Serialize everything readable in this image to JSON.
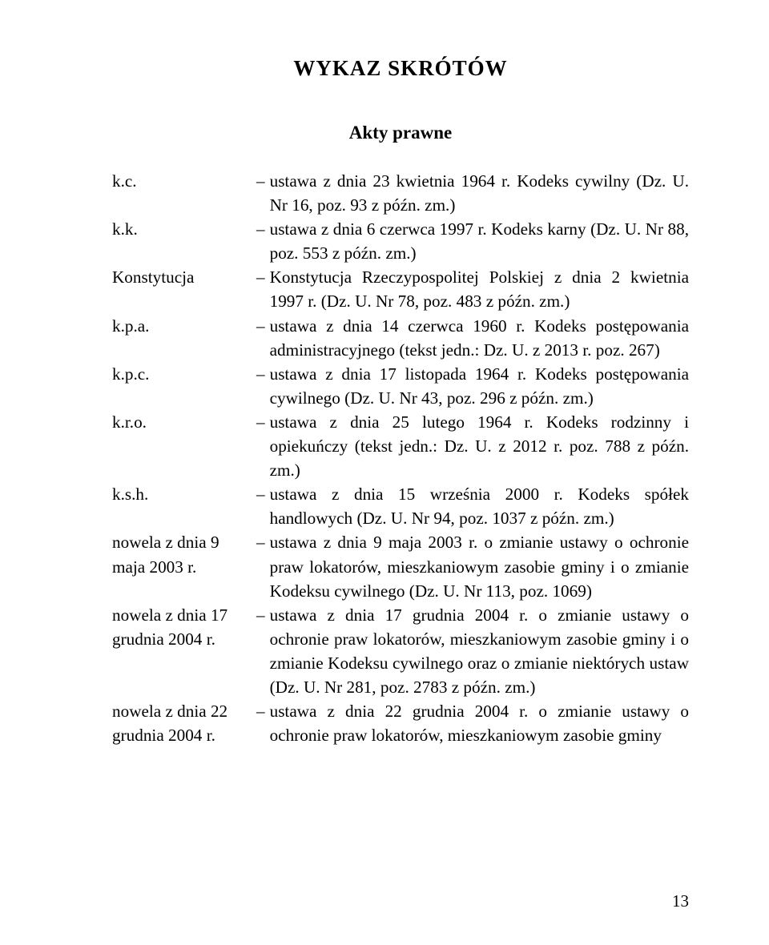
{
  "title": "WYKAZ SKRÓTÓW",
  "subtitle": "Akty prawne",
  "entries": [
    {
      "key": "k.c.",
      "desc": "ustawa z dnia 23 kwietnia 1964 r. Kodeks cywilny (Dz. U. Nr 16, poz. 93 z późn. zm.)"
    },
    {
      "key": "k.k.",
      "desc": "ustawa z dnia 6 czerwca 1997 r. Kodeks karny (Dz. U. Nr 88, poz. 553 z późn. zm.)"
    },
    {
      "key": "Konstytucja",
      "desc": "Konstytucja Rzeczypospolitej Polskiej z dnia 2 kwietnia 1997 r. (Dz. U. Nr 78, poz. 483 z późn. zm.)"
    },
    {
      "key": "k.p.a.",
      "desc": "ustawa z dnia 14 czerwca 1960 r. Kodeks postępowania administracyjnego (tekst jedn.: Dz. U. z 2013 r. poz. 267)"
    },
    {
      "key": "k.p.c.",
      "desc": "ustawa z dnia 17 listopada 1964 r. Kodeks postępowania cywilnego (Dz. U. Nr 43, poz. 296 z późn. zm.)"
    },
    {
      "key": "k.r.o.",
      "desc": "ustawa z dnia 25 lutego 1964 r. Kodeks rodzinny i opiekuńczy (tekst jedn.: Dz. U. z 2012 r. poz. 788 z późn. zm.)"
    },
    {
      "key": "k.s.h.",
      "desc": "ustawa z dnia 15 września 2000 r. Kodeks spółek handlowych (Dz. U. Nr 94, poz. 1037 z późn. zm.)"
    },
    {
      "key": "nowela z dnia 9 maja 2003 r.",
      "desc": "ustawa z dnia 9 maja 2003 r. o zmianie ustawy o ochronie praw lokatorów, mieszkaniowym zasobie gminy i o zmianie Kodeksu cywilnego (Dz. U. Nr 113, poz. 1069)"
    },
    {
      "key": "nowela z dnia 17 grudnia 2004 r.",
      "desc": "ustawa z dnia 17 grudnia 2004 r. o zmianie ustawy o ochronie praw lokatorów, mieszkaniowym zasobie gminy i o zmianie Kodeksu cywilnego oraz o zmianie niektórych ustaw (Dz. U. Nr 281, poz. 2783 z późn. zm.)"
    },
    {
      "key": "nowela z dnia 22 grudnia 2004 r.",
      "desc": "ustawa z dnia 22 grudnia 2004 r. o zmianie ustawy o ochronie praw lokatorów, mieszkaniowym zasobie gminy"
    }
  ],
  "page_number": "13"
}
